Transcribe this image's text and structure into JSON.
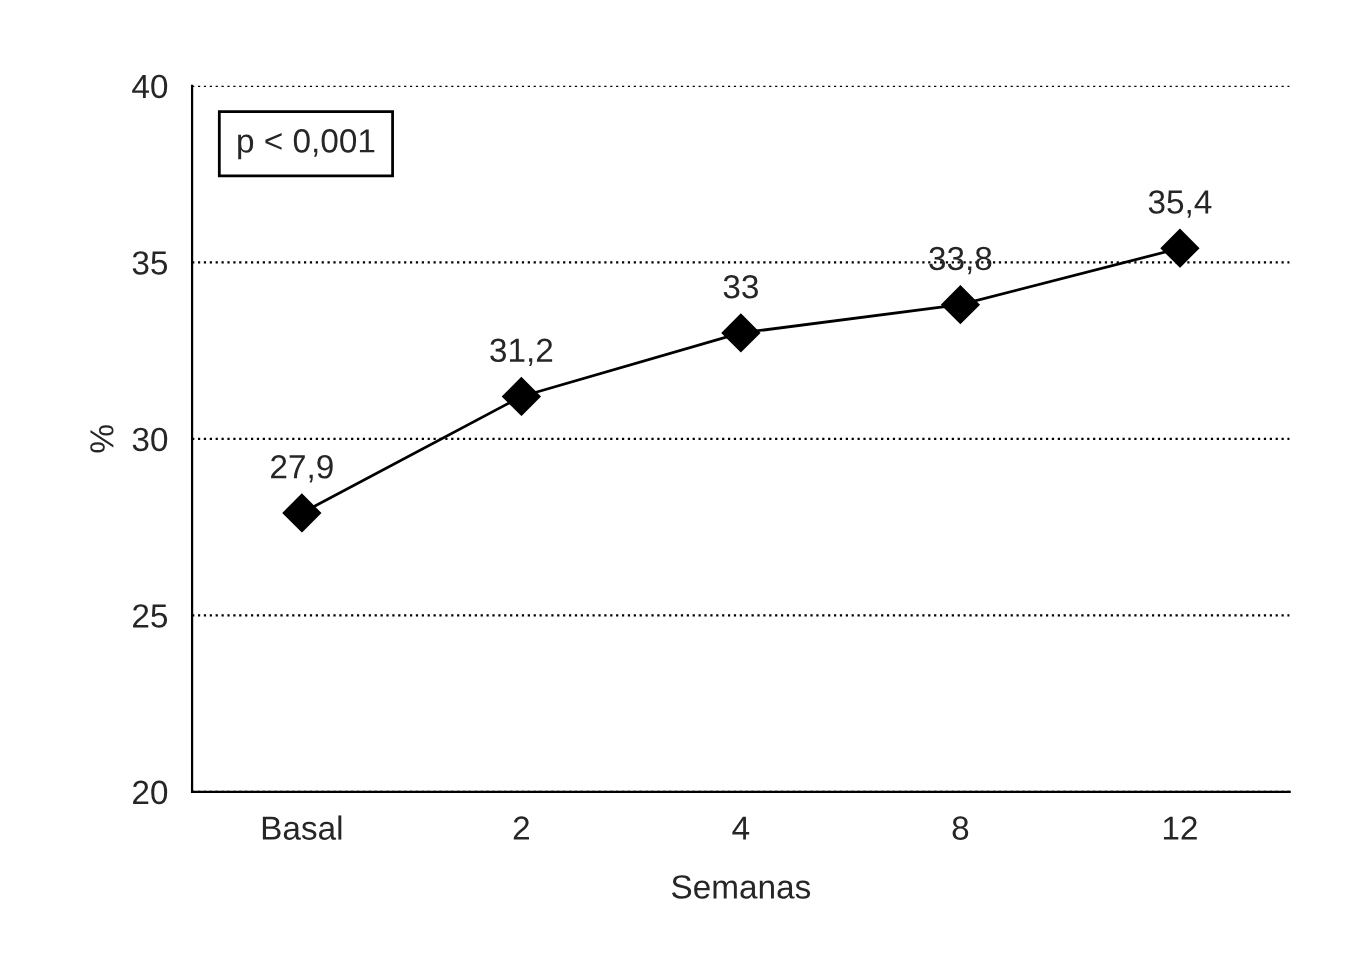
{
  "chart_data": {
    "type": "line",
    "xlabel": "Semanas",
    "ylabel": "%",
    "categories": [
      "Basal",
      "2",
      "4",
      "8",
      "12"
    ],
    "series": [
      {
        "color": "#000000",
        "values": [
          27.9,
          31.2,
          33,
          33.8,
          35.4
        ],
        "value_labels": [
          "27,9",
          "31,2",
          "33",
          "33,8",
          "35,4"
        ]
      }
    ],
    "ylim": [
      20,
      40
    ],
    "yticks": [
      20,
      25,
      30,
      35,
      40
    ],
    "grid": "y",
    "marker": "diamond",
    "line_style": "solid",
    "annotations": [
      "p < 0,001"
    ]
  }
}
